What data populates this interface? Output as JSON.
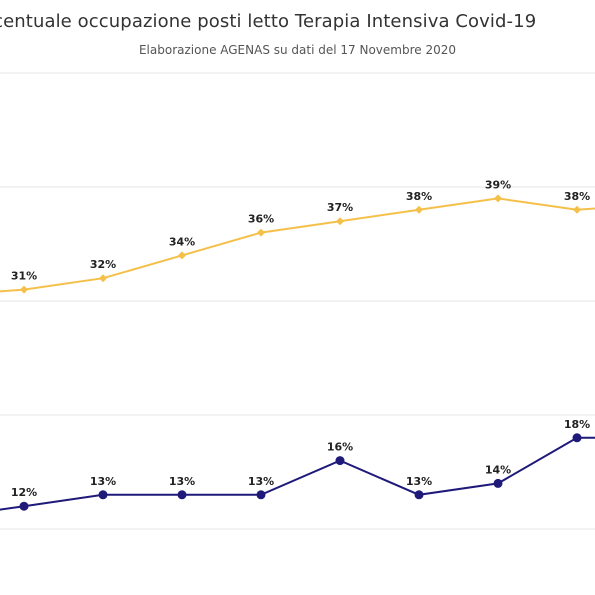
{
  "chart_data": {
    "type": "line",
    "title": "rcentuale occupazione posti letto Terapia Intensiva Covid-19",
    "subtitle": "Elaborazione AGENAS su dati del 17 Novembre 2020",
    "xlabel": "",
    "ylabel": "",
    "ylim": [
      0,
      50
    ],
    "grid": true,
    "colors": {
      "series_top": "#f5c04a",
      "series_bottom": "#1f1a7a",
      "grid": "#e6e6e6"
    },
    "series": [
      {
        "label_suffix": "%",
        "values": [
          30.5,
          31,
          32,
          34,
          36,
          37,
          38,
          39,
          38,
          38.5
        ],
        "labels": [
          "",
          "31%",
          "32%",
          "34%",
          "36%",
          "37%",
          "38%",
          "39%",
          "38%",
          ""
        ]
      },
      {
        "label_suffix": "%",
        "values": [
          11,
          12,
          13,
          13,
          13,
          16,
          13,
          14,
          18,
          18
        ],
        "labels": [
          "",
          "12%",
          "13%",
          "13%",
          "13%",
          "16%",
          "13%",
          "14%",
          "18%",
          ""
        ]
      }
    ]
  }
}
